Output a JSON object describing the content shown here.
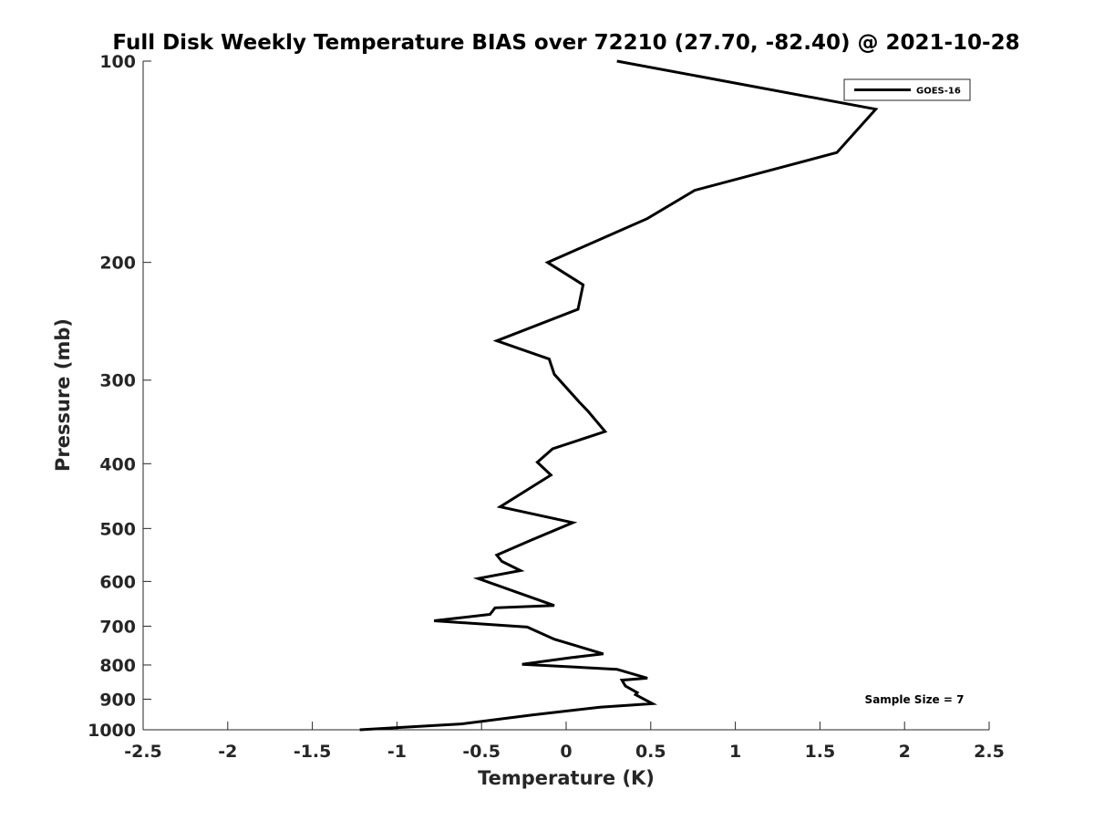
{
  "chart_data": {
    "type": "line",
    "title": "Full Disk Weekly Temperature BIAS over 72210 (27.70, -82.40) @ 2021-10-28",
    "xlabel": "Temperature (K)",
    "ylabel": "Pressure (mb)",
    "xlim": [
      -2.5,
      2.5
    ],
    "ylim": [
      100,
      1000
    ],
    "y_scale": "log",
    "y_reversed": true,
    "x_ticks": [
      "-2.5",
      "-2",
      "-1.5",
      "-1",
      "-0.5",
      "0",
      "0.5",
      "1",
      "1.5",
      "2",
      "2.5"
    ],
    "x_tick_values": [
      -2.5,
      -2,
      -1.5,
      -1,
      -0.5,
      0,
      0.5,
      1,
      1.5,
      2,
      2.5
    ],
    "y_ticks": [
      "100",
      "200",
      "300",
      "400",
      "500",
      "600",
      "700",
      "800",
      "900",
      "1000"
    ],
    "y_tick_values": [
      100,
      200,
      300,
      400,
      500,
      600,
      700,
      800,
      900,
      1000
    ],
    "grid": false,
    "legend_position": "top-right",
    "line_color": "#000000",
    "series": [
      {
        "name": "GOES-16",
        "x": [
          0.3,
          1.83,
          1.6,
          0.76,
          0.48,
          -0.11,
          0.1,
          0.07,
          -0.41,
          -0.1,
          -0.07,
          0.08,
          0.13,
          0.23,
          -0.08,
          -0.17,
          -0.09,
          -0.2,
          -0.39,
          0.04,
          -0.21,
          -0.41,
          -0.38,
          -0.27,
          -0.52,
          -0.07,
          -0.42,
          -0.45,
          -0.78,
          -0.23,
          -0.07,
          0.22,
          0.03,
          -0.26,
          0.3,
          0.48,
          0.33,
          0.35,
          0.42,
          0.41,
          0.51,
          0.2,
          -0.2,
          -0.62,
          -1.22
        ],
        "y": [
          100,
          118,
          137,
          156,
          172,
          200,
          216,
          235,
          262,
          279,
          294,
          324,
          334,
          358,
          380,
          398,
          416,
          433,
          464,
          490,
          521,
          548,
          560,
          578,
          594,
          652,
          657,
          672,
          687,
          702,
          732,
          770,
          780,
          798,
          812,
          837,
          843,
          860,
          880,
          886,
          914,
          925,
          950,
          980,
          1000
        ]
      }
    ],
    "annotation": "Sample Size = 7"
  }
}
